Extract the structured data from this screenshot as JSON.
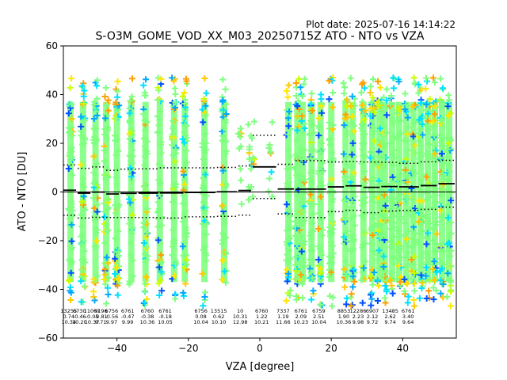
{
  "chart_data": {
    "type": "scatter",
    "title": "S-O3M_GOME_VOD_XX_M03_20250715Z ATO - NTO vs VZA",
    "plot_date_label": "Plot date: 2025-07-16 14:14:22",
    "xlabel": "VZA [degree]",
    "ylabel": "ATO - NTO [DU]",
    "xlim": [
      -55,
      55
    ],
    "ylim": [
      -60,
      60
    ],
    "xticks": [
      -40,
      -20,
      0,
      20,
      40
    ],
    "yticks": [
      -60,
      -40,
      -20,
      0,
      20,
      40,
      60
    ],
    "grid": false,
    "zero_line": true,
    "columns": [
      {
        "x": -53.5,
        "count": "13255",
        "mean": "0.74",
        "std": "10.34"
      },
      {
        "x": -50.5,
        "count": "6730",
        "mean": "-0.46",
        "std": "10.20"
      },
      {
        "x": -47.0,
        "count": "11067",
        "mean": "-0.05",
        "std": "10.37"
      },
      {
        "x": -44.5,
        "count": "9196",
        "mean": "-0.81",
        "std": "9.71"
      },
      {
        "x": -41.5,
        "count": "6756",
        "mean": "-0.56",
        "std": "9.97"
      },
      {
        "x": -37.0,
        "count": "6761",
        "mean": "-0.47",
        "std": "9.99"
      },
      {
        "x": -31.5,
        "count": "6760",
        "mean": "-0.38",
        "std": "10.36"
      },
      {
        "x": -26.5,
        "count": "6761",
        "mean": "-0.18",
        "std": "10.05"
      },
      {
        "x": -16.5,
        "count": "6756",
        "mean": "0.08",
        "std": "10.04"
      },
      {
        "x": -11.5,
        "count": "13515",
        "mean": "0.62",
        "std": "10.10"
      },
      {
        "x": -5.5,
        "count": "10",
        "mean": "10.31",
        "std": "12.98"
      },
      {
        "x": 0.5,
        "count": "6760",
        "mean": "1.22",
        "std": "10.21"
      },
      {
        "x": 6.5,
        "count": "7337",
        "mean": "1.19",
        "std": "11.66"
      },
      {
        "x": 11.5,
        "count": "6761",
        "mean": "2.09",
        "std": "10.23"
      },
      {
        "x": 16.5,
        "count": "6759",
        "mean": "2.51",
        "std": "10.04"
      },
      {
        "x": 23.5,
        "count": "8853",
        "mean": "1.90",
        "std": "10.36"
      },
      {
        "x": 27.5,
        "count": "12286",
        "mean": "2.23",
        "std": "9.98"
      },
      {
        "x": 31.5,
        "count": "6907",
        "mean": "2.12",
        "std": "9.72"
      },
      {
        "x": 36.5,
        "count": "13485",
        "mean": "2.62",
        "std": "9.74"
      },
      {
        "x": 41.5,
        "count": "6761",
        "mean": "3.40",
        "std": "9.64"
      }
    ],
    "mean_line": [
      [
        -55,
        0.74
      ],
      [
        -51,
        -0.46
      ],
      [
        -47,
        -0.05
      ],
      [
        -43,
        -0.81
      ],
      [
        -39,
        -0.56
      ],
      [
        -34,
        -0.47
      ],
      [
        -28,
        -0.38
      ],
      [
        -21,
        -0.18
      ],
      [
        -12,
        0.08
      ],
      [
        -6,
        0.62
      ],
      [
        -2,
        10.31
      ],
      [
        5,
        1.22
      ],
      [
        10,
        1.19
      ],
      [
        19,
        2.09
      ],
      [
        24,
        2.51
      ],
      [
        29,
        1.9
      ],
      [
        34,
        2.23
      ],
      [
        39,
        2.12
      ],
      [
        45,
        2.62
      ],
      [
        50,
        3.4
      ],
      [
        55,
        3.4
      ]
    ],
    "std_upper": [
      [
        -55,
        11.1
      ],
      [
        -51,
        9.7
      ],
      [
        -47,
        10.3
      ],
      [
        -43,
        8.9
      ],
      [
        -39,
        9.4
      ],
      [
        -34,
        9.5
      ],
      [
        -28,
        9.9
      ],
      [
        -21,
        9.9
      ],
      [
        -12,
        10.1
      ],
      [
        -6,
        10.7
      ],
      [
        -2,
        23.3
      ],
      [
        5,
        11.4
      ],
      [
        10,
        12.9
      ],
      [
        19,
        12.3
      ],
      [
        24,
        12.5
      ],
      [
        29,
        12.3
      ],
      [
        34,
        12.2
      ],
      [
        39,
        11.8
      ],
      [
        45,
        12.4
      ],
      [
        50,
        13.0
      ],
      [
        55,
        13.0
      ]
    ],
    "std_lower": [
      [
        -55,
        -9.6
      ],
      [
        -51,
        -10.7
      ],
      [
        -47,
        -10.4
      ],
      [
        -43,
        -10.5
      ],
      [
        -39,
        -10.5
      ],
      [
        -34,
        -10.5
      ],
      [
        -28,
        -10.7
      ],
      [
        -21,
        -10.2
      ],
      [
        -12,
        -10.0
      ],
      [
        -6,
        -9.5
      ],
      [
        -2,
        -2.7
      ],
      [
        5,
        -9.0
      ],
      [
        10,
        -10.5
      ],
      [
        19,
        -8.1
      ],
      [
        24,
        -7.5
      ],
      [
        29,
        -8.5
      ],
      [
        34,
        -7.8
      ],
      [
        39,
        -7.6
      ],
      [
        45,
        -7.1
      ],
      [
        50,
        -6.2
      ],
      [
        55,
        -6.2
      ]
    ],
    "scatter_columns_x": [
      -53,
      -49.5,
      -46,
      -43,
      -40,
      -36,
      -32,
      -28,
      -24,
      -21,
      -15.5,
      -10,
      -5.5,
      -3,
      -2,
      3,
      8,
      10.5,
      12,
      14.5,
      17,
      20,
      24,
      26,
      29,
      31.5,
      33.5,
      35,
      37,
      39,
      41,
      43,
      45,
      47,
      49,
      51,
      53
    ],
    "colors": {
      "cyan": "#00e0ff",
      "blue": "#0050ff",
      "azure": "#00a8ff",
      "green": "#7fff7f",
      "yellow": "#ffe600",
      "gold": "#ffc800",
      "lime": "#c8ff00",
      "orange": "#ffa000"
    }
  }
}
